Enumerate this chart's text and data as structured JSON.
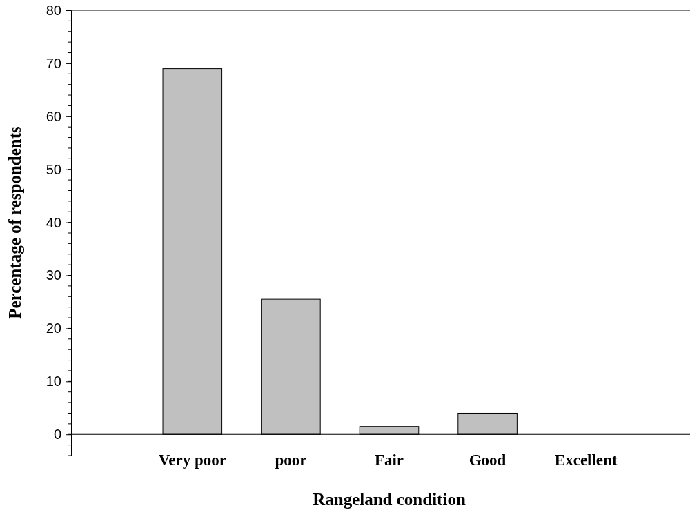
{
  "chart_data": {
    "type": "bar",
    "xlabel": "Rangeland condition",
    "ylabel": "Percentage of respondents",
    "categories": [
      "Very poor",
      "poor",
      "Fair",
      "Good",
      "Excellent"
    ],
    "values": [
      69,
      25.5,
      1.5,
      4,
      0
    ],
    "color": "#c0c0c0",
    "ylim": [
      -4,
      80
    ],
    "yticks": [
      0,
      10,
      20,
      30,
      40,
      50,
      60,
      70,
      80
    ],
    "grid": false
  }
}
